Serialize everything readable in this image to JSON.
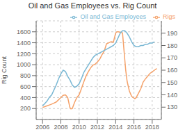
{
  "chart_data": {
    "type": "line",
    "title": "Oil and Gas Employees vs. Rig Count",
    "ylabel": "Rig Count",
    "grid": true,
    "legend": "upper right",
    "xlim": [
      2005.3,
      2019.0
    ],
    "xticks": [
      2006,
      2008,
      2010,
      2012,
      2014,
      2016,
      2018
    ],
    "ylim": [
      0,
      1800
    ],
    "yticks": [
      200,
      400,
      600,
      800,
      1000,
      1200,
      1400,
      1600
    ],
    "y2lim": [
      120,
      200
    ],
    "y2ticks": [
      130,
      140,
      150,
      160,
      170,
      180,
      190
    ],
    "series": [
      {
        "name": "Rigs",
        "color": "#f5a26a",
        "x": [
          2006.0,
          2006.25,
          2006.5,
          2006.75,
          2007.0,
          2007.25,
          2007.5,
          2007.75,
          2008.0,
          2008.25,
          2008.5,
          2008.6,
          2008.75,
          2009.0,
          2009.1,
          2009.25,
          2009.5,
          2009.75,
          2010.0,
          2010.25,
          2010.5,
          2010.75,
          2011.0,
          2011.25,
          2011.5,
          2011.75,
          2012.0,
          2012.25,
          2012.5,
          2012.75,
          2013.0,
          2013.25,
          2013.5,
          2013.75,
          2014.0,
          2014.15,
          2014.3,
          2014.5,
          2014.75,
          2015.0,
          2015.1,
          2015.25,
          2015.5,
          2015.75,
          2016.0,
          2016.1,
          2016.25,
          2016.5,
          2016.75,
          2017.0,
          2017.25,
          2017.5,
          2017.75,
          2018.0,
          2018.25,
          2018.5
        ],
        "values": [
          220,
          235,
          250,
          265,
          280,
          300,
          320,
          360,
          400,
          440,
          450,
          430,
          400,
          215,
          195,
          200,
          310,
          400,
          450,
          560,
          680,
          790,
          870,
          940,
          990,
          1010,
          1050,
          1100,
          1180,
          1250,
          1380,
          1400,
          1420,
          1410,
          1580,
          1600,
          1600,
          1590,
          1580,
          1090,
          900,
          700,
          520,
          420,
          390,
          380,
          400,
          480,
          560,
          680,
          740,
          790,
          840,
          870,
          900,
          930
        ]
      },
      {
        "name": "Oil and Gas Employees",
        "color": "#7ab8d4",
        "axis": "y2",
        "x": [
          2006.0,
          2006.25,
          2006.5,
          2006.75,
          2007.0,
          2007.25,
          2007.5,
          2007.75,
          2008.0,
          2008.25,
          2008.5,
          2008.75,
          2009.0,
          2009.25,
          2009.5,
          2009.75,
          2010.0,
          2010.25,
          2010.5,
          2010.75,
          2011.0,
          2011.25,
          2011.5,
          2011.75,
          2012.0,
          2012.25,
          2012.5,
          2012.75,
          2013.0,
          2013.25,
          2013.5,
          2013.75,
          2014.0,
          2014.25,
          2014.5,
          2014.75,
          2015.0,
          2015.25,
          2015.5,
          2015.75,
          2016.0,
          2016.25,
          2016.5,
          2016.75,
          2017.0,
          2017.25,
          2017.5,
          2017.75,
          2018.0,
          2018.25
        ],
        "values": [
          131,
          133,
          135,
          138,
          140,
          144,
          148,
          153,
          157,
          160,
          159,
          155,
          152,
          148,
          146,
          147,
          149,
          153,
          158,
          161,
          164,
          167,
          170,
          172,
          173,
          174,
          175,
          176,
          177,
          178,
          179,
          180,
          182,
          186,
          190,
          192,
          192,
          190,
          187,
          183,
          180,
          179,
          179,
          180,
          180,
          181,
          181,
          182,
          182,
          183
        ]
      }
    ]
  }
}
